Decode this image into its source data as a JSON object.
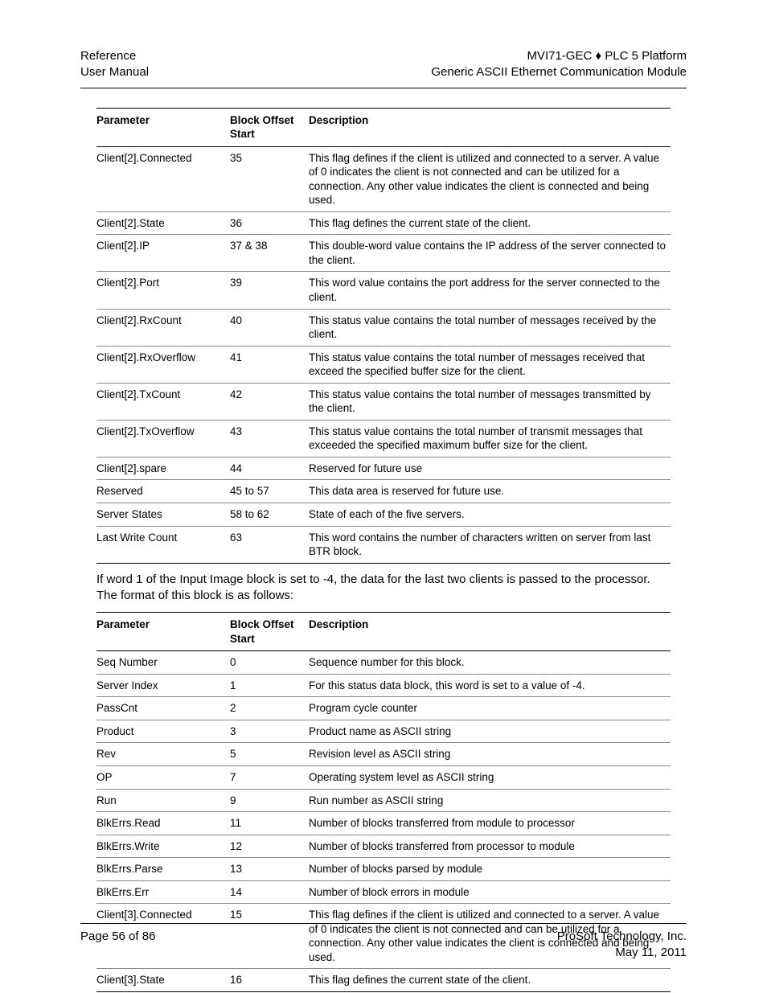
{
  "header": {
    "left_line1": "Reference",
    "left_line2": "User Manual",
    "right_line1_a": "MVI71-GEC ",
    "right_line1_diamond": "♦",
    "right_line1_b": " PLC 5 Platform",
    "right_line2": "Generic ASCII Ethernet Communication Module"
  },
  "table1": {
    "headers": {
      "c1": "Parameter",
      "c2a": "Block Offset",
      "c2b": "Start",
      "c3": "Description"
    },
    "rows": [
      {
        "p": "Client[2].Connected",
        "o": "35",
        "d": "This flag defines if the client is utilized and connected to a server. A value of 0 indicates the client is not connected and can be utilized for a connection. Any other value indicates the client is connected and being used."
      },
      {
        "p": "Client[2].State",
        "o": "36",
        "d": "This flag defines the current state of the client."
      },
      {
        "p": "Client[2].IP",
        "o": "37 & 38",
        "d": "This double-word value contains the IP address of the server connected to the client."
      },
      {
        "p": "Client[2].Port",
        "o": "39",
        "d": "This word value contains the port address for the server connected to the client."
      },
      {
        "p": "Client[2].RxCount",
        "o": "40",
        "d": "This status value contains the total number of messages received by the client."
      },
      {
        "p": "Client[2].RxOverflow",
        "o": "41",
        "d": "This status value contains the total number of messages received that exceed the specified buffer size for the client."
      },
      {
        "p": "Client[2].TxCount",
        "o": "42",
        "d": "This status value contains the total number of messages transmitted by the client."
      },
      {
        "p": "Client[2].TxOverflow",
        "o": "43",
        "d": "This status value contains the total number of transmit messages that exceeded the specified maximum buffer size for the client."
      },
      {
        "p": "Client[2].spare",
        "o": "44",
        "d": "Reserved for future use"
      },
      {
        "p": "Reserved",
        "o": "45 to 57",
        "d": "This data area is reserved for future use."
      },
      {
        "p": "Server States",
        "o": "58 to 62",
        "d": "State of each of the five servers."
      },
      {
        "p": "Last Write Count",
        "o": "63",
        "d": "This word contains the number of characters written on server from last BTR block."
      }
    ]
  },
  "body_text": "If word 1 of the Input Image block is set to -4, the data for the last two clients is passed to the processor. The format of this block is as follows:",
  "table2": {
    "headers": {
      "c1": "Parameter",
      "c2a": "Block Offset",
      "c2b": "Start",
      "c3": "Description"
    },
    "rows": [
      {
        "p": "Seq Number",
        "o": "0",
        "d": "Sequence number for this block."
      },
      {
        "p": "Server Index",
        "o": "1",
        "d": "For this status data block, this word is set to a value of -4."
      },
      {
        "p": "PassCnt",
        "o": "2",
        "d": "Program cycle counter"
      },
      {
        "p": "Product",
        "o": "3",
        "d": "Product name as ASCII string"
      },
      {
        "p": "Rev",
        "o": "5",
        "d": "Revision level as ASCII string"
      },
      {
        "p": "OP",
        "o": "7",
        "d": "Operating system level as ASCII string"
      },
      {
        "p": "Run",
        "o": "9",
        "d": "Run number as ASCII string"
      },
      {
        "p": "BlkErrs.Read",
        "o": "11",
        "d": "Number of blocks transferred from module to processor"
      },
      {
        "p": "BlkErrs.Write",
        "o": "12",
        "d": "Number of blocks transferred from processor to module"
      },
      {
        "p": "BlkErrs.Parse",
        "o": "13",
        "d": "Number of blocks parsed by module"
      },
      {
        "p": "BlkErrs.Err",
        "o": "14",
        "d": "Number of block errors in module"
      },
      {
        "p": "Client[3].Connected",
        "o": "15",
        "d": "This flag defines if the client is utilized and connected to a server. A value of 0 indicates the client is not connected and can be utilized for a connection. Any other value indicates the client is connected and being used."
      },
      {
        "p": "Client[3].State",
        "o": "16",
        "d": "This flag defines the current state of the client."
      }
    ]
  },
  "footer": {
    "left": "Page 56 of 86",
    "right_line1": "ProSoft Technology, Inc.",
    "right_line2": "May 11, 2011"
  }
}
